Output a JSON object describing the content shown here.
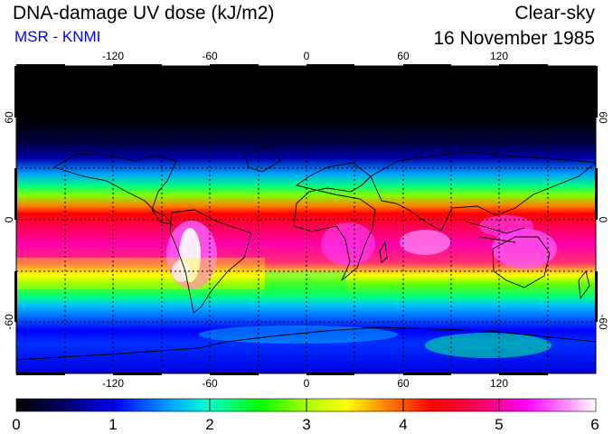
{
  "header": {
    "title": "DNA-damage UV dose (kJ/m2)",
    "source": "MSR - KNMI",
    "condition": "Clear-sky",
    "date": "16 November 1985"
  },
  "map": {
    "lon_ticks": [
      "-120",
      "-60",
      "0",
      "60",
      "120"
    ],
    "lat_ticks": [
      "60",
      "0",
      "-60"
    ],
    "lat_ticks_right": [
      "60",
      "0",
      "-60"
    ],
    "lon_range": [
      -180,
      180
    ],
    "lat_range": [
      -90,
      90
    ],
    "gridlines": "dotted, every 30 degrees"
  },
  "colorbar": {
    "labels": [
      "0",
      "1",
      "2",
      "3",
      "4",
      "5",
      "6"
    ],
    "range": [
      0,
      6
    ],
    "colors": [
      "#000000",
      "#000080",
      "#0000ff",
      "#00aaff",
      "#00ffff",
      "#00ff80",
      "#00ff00",
      "#aaff00",
      "#ffff00",
      "#ff8000",
      "#ff0000",
      "#ff0060",
      "#ff00aa",
      "#ff00ff",
      "#ff80ff",
      "#ffffff"
    ]
  }
}
